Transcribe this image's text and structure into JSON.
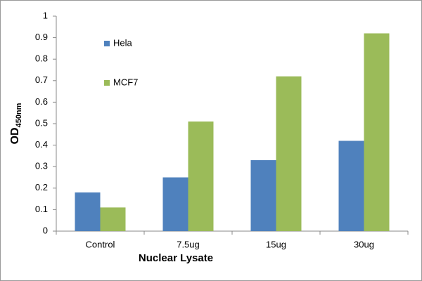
{
  "chart_data": {
    "type": "bar",
    "xlabel": "Nuclear Lysate",
    "ylabel": "OD",
    "ylabel_sub": "450nm",
    "categories": [
      "Control",
      "7.5ug",
      "15ug",
      "30ug"
    ],
    "series": [
      {
        "name": "Hela",
        "color": "#4f81bd",
        "values": [
          0.18,
          0.25,
          0.33,
          0.42
        ]
      },
      {
        "name": "MCF7",
        "color": "#9bbb59",
        "values": [
          0.11,
          0.51,
          0.72,
          0.92
        ]
      }
    ],
    "ylim": [
      0,
      1
    ],
    "yticks": [
      0,
      0.1,
      0.2,
      0.3,
      0.4,
      0.5,
      0.6,
      0.7,
      0.8,
      0.9,
      1
    ],
    "grid": false,
    "legend": "upper left"
  }
}
